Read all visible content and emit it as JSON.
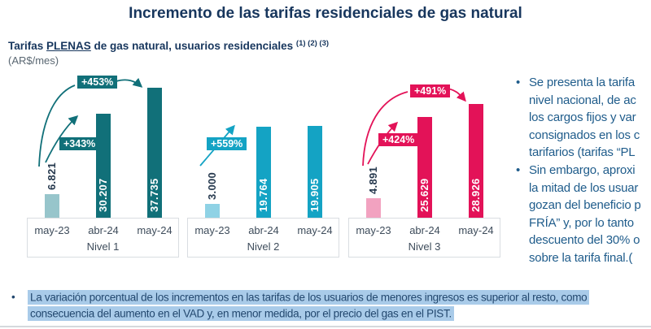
{
  "header": {
    "title": "Incremento de las tarifas residenciales de gas natural",
    "subtitle_prefix": "Tarifas ",
    "subtitle_emphasis": "PLENAS",
    "subtitle_suffix": " de gas natural, usuarios residenciales ",
    "subtitle_superscript": "(1) (2) (3)",
    "unit": "(AR$/mes)"
  },
  "chart_data": {
    "type": "bar",
    "title": "Tarifas PLENAS de gas natural, usuarios residenciales",
    "ylabel": "AR$/mes",
    "grid": false,
    "legend": false,
    "categories": [
      "may-23",
      "abr-24",
      "may-24"
    ],
    "groups": [
      {
        "name": "Nivel 1",
        "values": [
          6821,
          30207,
          37735
        ],
        "value_labels": [
          "6.821",
          "30.207",
          "37.735"
        ],
        "bar_colors": [
          "#97C5CB",
          "#117079",
          "#117079"
        ],
        "pct_badges": [
          "+343%",
          "+453%"
        ],
        "badge_color": "#117079"
      },
      {
        "name": "Nivel 2",
        "values": [
          3000,
          19764,
          19905
        ],
        "value_labels": [
          "3.000",
          "19.764",
          "19.905"
        ],
        "bar_colors": [
          "#8FD2E5",
          "#14A3C4",
          "#14A3C4"
        ],
        "pct_badges": [
          "+559%"
        ],
        "badge_color": "#14A3C4"
      },
      {
        "name": "Nivel 3",
        "values": [
          4891,
          25629,
          28926
        ],
        "value_labels": [
          "4.891",
          "25.629",
          "28.926"
        ],
        "bar_colors": [
          "#F2A2C0",
          "#E31258",
          "#E31258"
        ],
        "pct_badges": [
          "+424%",
          "+491%"
        ],
        "badge_color": "#E31258"
      }
    ]
  },
  "right_panel": {
    "bullets": [
      {
        "lines": [
          "Se presenta la tarifa",
          "nivel nacional, de ac",
          "los cargos fijos y var",
          "consignados en los c",
          "tarifarios (tarifas “PL"
        ]
      },
      {
        "lines": [
          "Sin embargo, aproxi",
          "la mitad de los usuar",
          "gozan del beneficio p",
          "FRÍA” y, por lo tanto",
          "descuento del 30% o",
          "sobre la tarifa final.("
        ]
      }
    ]
  },
  "bottom_note": {
    "highlight_color": "#A9CBE9",
    "lines": [
      "La variación porcentual de los incrementos en las tarifas de los usuarios de menores ingresos es superior al resto, como",
      "consecuencia del aumento en el VAD y, en menor medida, por el precio del gas en el PIST."
    ]
  }
}
